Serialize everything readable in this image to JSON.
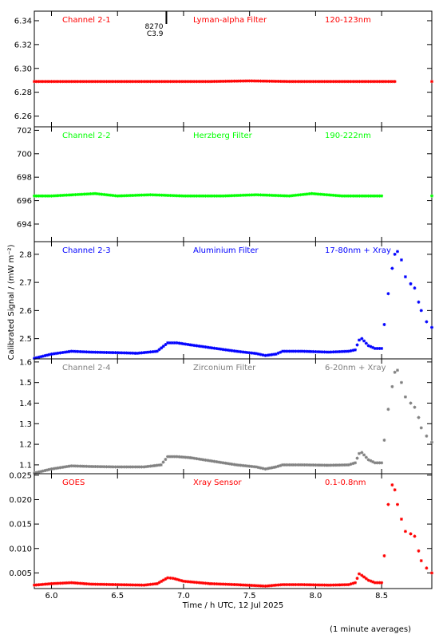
{
  "chart_data": {
    "type": "scatter",
    "xlabel": "Time / h UTC, 12 Jul 2025",
    "ylabel": "Calibrated Signal / (mW m⁻²)",
    "footnote": "(1 minute averages)",
    "event_marker": {
      "x": 6.87,
      "labels": [
        "8270",
        "C3.9"
      ]
    },
    "x_range": [
      5.87,
      8.88
    ],
    "x_ticks": [
      6.0,
      6.5,
      7.0,
      7.5,
      8.0,
      8.5
    ],
    "x_tick_labels": [
      "6.0",
      "6.5",
      "7.0",
      "7.5",
      "8.0",
      "8.5"
    ],
    "grid": false,
    "panels": [
      {
        "channel": "Channel 2-1",
        "filter": "Lyman-alpha Filter",
        "band": "120-123nm",
        "color": "#ff0000",
        "ylim": [
          6.251,
          6.348
        ],
        "y_ticks": [
          6.26,
          6.28,
          6.3,
          6.32,
          6.34
        ],
        "y_tick_labels": [
          "6.26",
          "6.28",
          "6.30",
          "6.32",
          "6.34"
        ],
        "points": [
          [
            5.87,
            6.289
          ],
          [
            6.0,
            6.289
          ],
          [
            6.3,
            6.289
          ],
          [
            6.6,
            6.289
          ],
          [
            6.9,
            6.289
          ],
          [
            7.2,
            6.289
          ],
          [
            7.5,
            6.2895
          ],
          [
            7.8,
            6.289
          ],
          [
            8.1,
            6.289
          ],
          [
            8.4,
            6.289
          ],
          [
            8.6,
            6.289
          ],
          [
            8.88,
            6.289
          ]
        ]
      },
      {
        "channel": "Channel 2-2",
        "filter": "Herzberg Filter",
        "band": "190-222nm",
        "color": "#00ff00",
        "ylim": [
          692.5,
          702.3
        ],
        "y_ticks": [
          694,
          696,
          698,
          700,
          702
        ],
        "y_tick_labels": [
          "694",
          "696",
          "698",
          "700",
          "702"
        ],
        "points": [
          [
            5.87,
            696.4
          ],
          [
            6.0,
            696.4
          ],
          [
            6.33,
            696.6
          ],
          [
            6.5,
            696.4
          ],
          [
            6.75,
            696.5
          ],
          [
            7.0,
            696.4
          ],
          [
            7.3,
            696.4
          ],
          [
            7.55,
            696.5
          ],
          [
            7.8,
            696.4
          ],
          [
            7.97,
            696.6
          ],
          [
            8.2,
            696.4
          ],
          [
            8.5,
            696.4
          ],
          [
            8.88,
            696.4
          ]
        ]
      },
      {
        "channel": "Channel 2-3",
        "filter": "Aluminium Filter",
        "band": "17-80nm + Xray",
        "color": "#0000ff",
        "ylim": [
          2.428,
          2.845
        ],
        "y_ticks": [
          2.5,
          2.6,
          2.7,
          2.8
        ],
        "y_tick_labels": [
          "2.5",
          "2.6",
          "2.7",
          "2.8"
        ],
        "points": [
          [
            5.87,
            2.43
          ],
          [
            6.0,
            2.445
          ],
          [
            6.15,
            2.455
          ],
          [
            6.3,
            2.452
          ],
          [
            6.5,
            2.45
          ],
          [
            6.65,
            2.448
          ],
          [
            6.8,
            2.455
          ],
          [
            6.88,
            2.485
          ],
          [
            6.95,
            2.485
          ],
          [
            7.05,
            2.478
          ],
          [
            7.2,
            2.468
          ],
          [
            7.4,
            2.455
          ],
          [
            7.55,
            2.447
          ],
          [
            7.62,
            2.44
          ],
          [
            7.7,
            2.445
          ],
          [
            7.75,
            2.455
          ],
          [
            7.9,
            2.455
          ],
          [
            8.1,
            2.452
          ],
          [
            8.25,
            2.455
          ],
          [
            8.3,
            2.46
          ],
          [
            8.33,
            2.495
          ],
          [
            8.35,
            2.5
          ],
          [
            8.4,
            2.475
          ],
          [
            8.45,
            2.465
          ],
          [
            8.5,
            2.465
          ],
          [
            8.52,
            2.55
          ],
          [
            8.55,
            2.66
          ],
          [
            8.58,
            2.75
          ],
          [
            8.6,
            2.8
          ],
          [
            8.62,
            2.81
          ],
          [
            8.65,
            2.78
          ],
          [
            8.68,
            2.72
          ],
          [
            8.72,
            2.695
          ],
          [
            8.75,
            2.68
          ],
          [
            8.78,
            2.63
          ],
          [
            8.8,
            2.6
          ],
          [
            8.84,
            2.56
          ],
          [
            8.88,
            2.54
          ]
        ]
      },
      {
        "channel": "Channel 2-4",
        "filter": "Zirconium Filter",
        "band": "6-20nm + Xray",
        "color": "#808080",
        "ylim": [
          1.057,
          1.615
        ],
        "y_ticks": [
          1.1,
          1.2,
          1.3,
          1.4,
          1.5,
          1.6
        ],
        "y_tick_labels": [
          "1.1",
          "1.2",
          "1.3",
          "1.4",
          "1.5",
          "1.6"
        ],
        "points": [
          [
            5.87,
            1.06
          ],
          [
            6.0,
            1.08
          ],
          [
            6.15,
            1.095
          ],
          [
            6.3,
            1.092
          ],
          [
            6.5,
            1.09
          ],
          [
            6.7,
            1.09
          ],
          [
            6.83,
            1.1
          ],
          [
            6.88,
            1.14
          ],
          [
            6.95,
            1.14
          ],
          [
            7.05,
            1.135
          ],
          [
            7.2,
            1.12
          ],
          [
            7.4,
            1.1
          ],
          [
            7.55,
            1.09
          ],
          [
            7.62,
            1.08
          ],
          [
            7.7,
            1.09
          ],
          [
            7.75,
            1.1
          ],
          [
            7.9,
            1.1
          ],
          [
            8.1,
            1.098
          ],
          [
            8.25,
            1.1
          ],
          [
            8.3,
            1.11
          ],
          [
            8.33,
            1.155
          ],
          [
            8.35,
            1.16
          ],
          [
            8.4,
            1.125
          ],
          [
            8.45,
            1.11
          ],
          [
            8.5,
            1.11
          ],
          [
            8.52,
            1.22
          ],
          [
            8.55,
            1.37
          ],
          [
            8.58,
            1.48
          ],
          [
            8.6,
            1.55
          ],
          [
            8.62,
            1.56
          ],
          [
            8.65,
            1.5
          ],
          [
            8.68,
            1.43
          ],
          [
            8.72,
            1.4
          ],
          [
            8.75,
            1.38
          ],
          [
            8.78,
            1.33
          ],
          [
            8.8,
            1.28
          ],
          [
            8.84,
            1.24
          ],
          [
            8.88,
            1.21
          ]
        ]
      },
      {
        "channel": "GOES",
        "filter": "Xray Sensor",
        "band": "0.1-0.8nm",
        "color": "#ff0000",
        "ylim": [
          0.0018,
          0.0253
        ],
        "y_ticks": [
          0.005,
          0.01,
          0.015,
          0.02,
          0.025
        ],
        "y_tick_labels": [
          "0.005",
          "0.010",
          "0.015",
          "0.020",
          "0.025"
        ],
        "points": [
          [
            5.87,
            0.0025
          ],
          [
            6.0,
            0.0028
          ],
          [
            6.15,
            0.003
          ],
          [
            6.3,
            0.0027
          ],
          [
            6.5,
            0.0026
          ],
          [
            6.7,
            0.0025
          ],
          [
            6.8,
            0.0028
          ],
          [
            6.88,
            0.004
          ],
          [
            6.92,
            0.0039
          ],
          [
            7.0,
            0.0033
          ],
          [
            7.2,
            0.0028
          ],
          [
            7.4,
            0.0026
          ],
          [
            7.55,
            0.0024
          ],
          [
            7.62,
            0.0023
          ],
          [
            7.7,
            0.0025
          ],
          [
            7.75,
            0.0026
          ],
          [
            7.9,
            0.0026
          ],
          [
            8.1,
            0.0025
          ],
          [
            8.25,
            0.0026
          ],
          [
            8.3,
            0.003
          ],
          [
            8.33,
            0.0048
          ],
          [
            8.35,
            0.0045
          ],
          [
            8.4,
            0.0035
          ],
          [
            8.45,
            0.003
          ],
          [
            8.5,
            0.003
          ],
          [
            8.52,
            0.0085
          ],
          [
            8.55,
            0.019
          ],
          [
            8.58,
            0.023
          ],
          [
            8.6,
            0.022
          ],
          [
            8.62,
            0.019
          ],
          [
            8.65,
            0.016
          ],
          [
            8.68,
            0.0135
          ],
          [
            8.72,
            0.013
          ],
          [
            8.75,
            0.0125
          ],
          [
            8.78,
            0.0095
          ],
          [
            8.8,
            0.0075
          ],
          [
            8.84,
            0.006
          ],
          [
            8.88,
            0.005
          ]
        ]
      }
    ]
  }
}
